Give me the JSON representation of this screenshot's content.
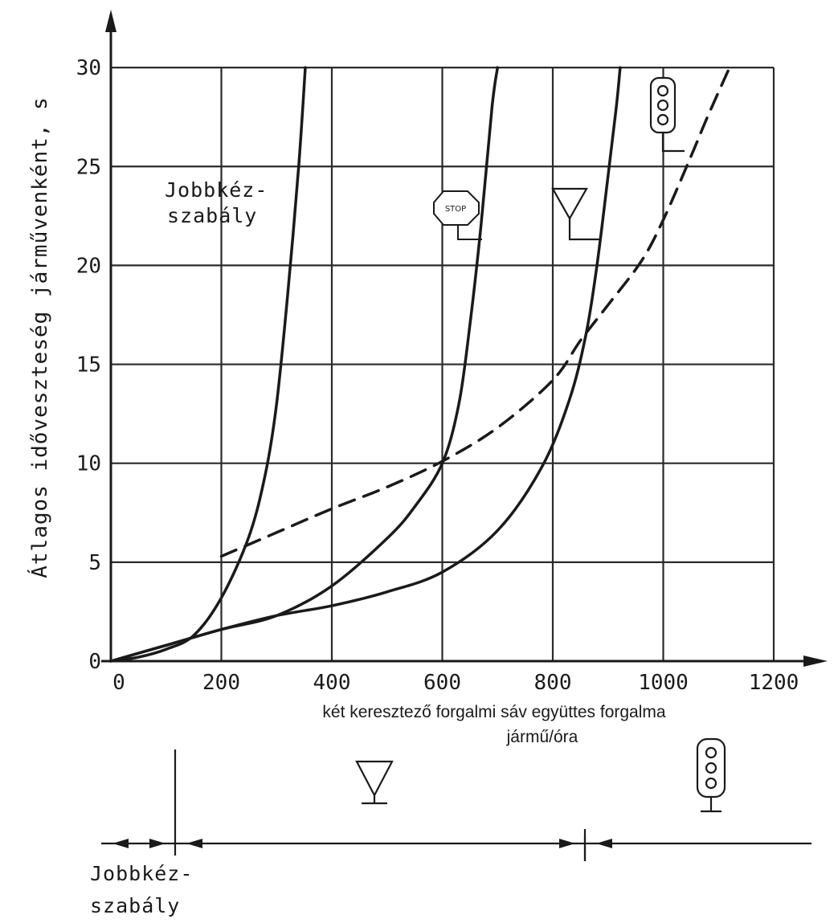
{
  "chart_data": {
    "type": "line",
    "title": "",
    "xlabel": "két keresztező forgalmi sáv együttes forgalma",
    "xlabel2": "jármű/óra",
    "ylabel": "Átlagos időveszteség járművenként, s",
    "xlim": [
      0,
      1300
    ],
    "ylim": [
      0,
      30
    ],
    "x_ticks": [
      "0",
      "200",
      "400",
      "600",
      "800",
      "1000",
      "1200"
    ],
    "y_ticks": [
      "0",
      "5",
      "10",
      "15",
      "20",
      "25",
      "30"
    ],
    "grid": true,
    "series": [
      {
        "name": "Jobbkéz-szabály",
        "style": "solid",
        "points": [
          [
            0,
            0
          ],
          [
            50,
            0.2
          ],
          [
            100,
            0.6
          ],
          [
            150,
            1.3
          ],
          [
            200,
            3.2
          ],
          [
            250,
            6.3
          ],
          [
            280,
            9.5
          ],
          [
            300,
            13
          ],
          [
            320,
            18.5
          ],
          [
            340,
            25
          ],
          [
            352,
            30
          ]
        ]
      },
      {
        "name": "STOP",
        "style": "solid",
        "points": [
          [
            0,
            0
          ],
          [
            100,
            0.8
          ],
          [
            200,
            1.6
          ],
          [
            300,
            2.3
          ],
          [
            400,
            3.8
          ],
          [
            500,
            6.2
          ],
          [
            550,
            7.8
          ],
          [
            600,
            10
          ],
          [
            630,
            13
          ],
          [
            650,
            17
          ],
          [
            670,
            22
          ],
          [
            690,
            28
          ],
          [
            700,
            30
          ]
        ]
      },
      {
        "name": "elsőbbségadás",
        "style": "solid",
        "points": [
          [
            0,
            0
          ],
          [
            100,
            0.8
          ],
          [
            200,
            1.6
          ],
          [
            300,
            2.3
          ],
          [
            400,
            2.8
          ],
          [
            500,
            3.5
          ],
          [
            600,
            4.5
          ],
          [
            700,
            6.6
          ],
          [
            780,
            9.8
          ],
          [
            830,
            13.2
          ],
          [
            860,
            16.5
          ],
          [
            880,
            20
          ],
          [
            900,
            24.5
          ],
          [
            915,
            28
          ],
          [
            922,
            30
          ]
        ]
      },
      {
        "name": "jelzőlámpa",
        "style": "dashed",
        "points": [
          [
            200,
            5.3
          ],
          [
            300,
            6.5
          ],
          [
            400,
            7.7
          ],
          [
            500,
            8.8
          ],
          [
            600,
            10.1
          ],
          [
            700,
            11.8
          ],
          [
            800,
            14.2
          ],
          [
            850,
            16.2
          ],
          [
            900,
            18
          ],
          [
            960,
            20.2
          ],
          [
            1000,
            22.3
          ],
          [
            1050,
            25.5
          ],
          [
            1080,
            27.5
          ],
          [
            1120,
            30
          ]
        ]
      }
    ],
    "annotations": {
      "right_hand_rule_line1": "Jobbkéz-",
      "right_hand_rule_line2": "szabály",
      "stop_sign_text": "STOP",
      "bottom_right_hand_line1": "Jobbkéz-",
      "bottom_right_hand_line2": "szabály"
    },
    "regime_boundaries_x": [
      120,
      860
    ]
  }
}
